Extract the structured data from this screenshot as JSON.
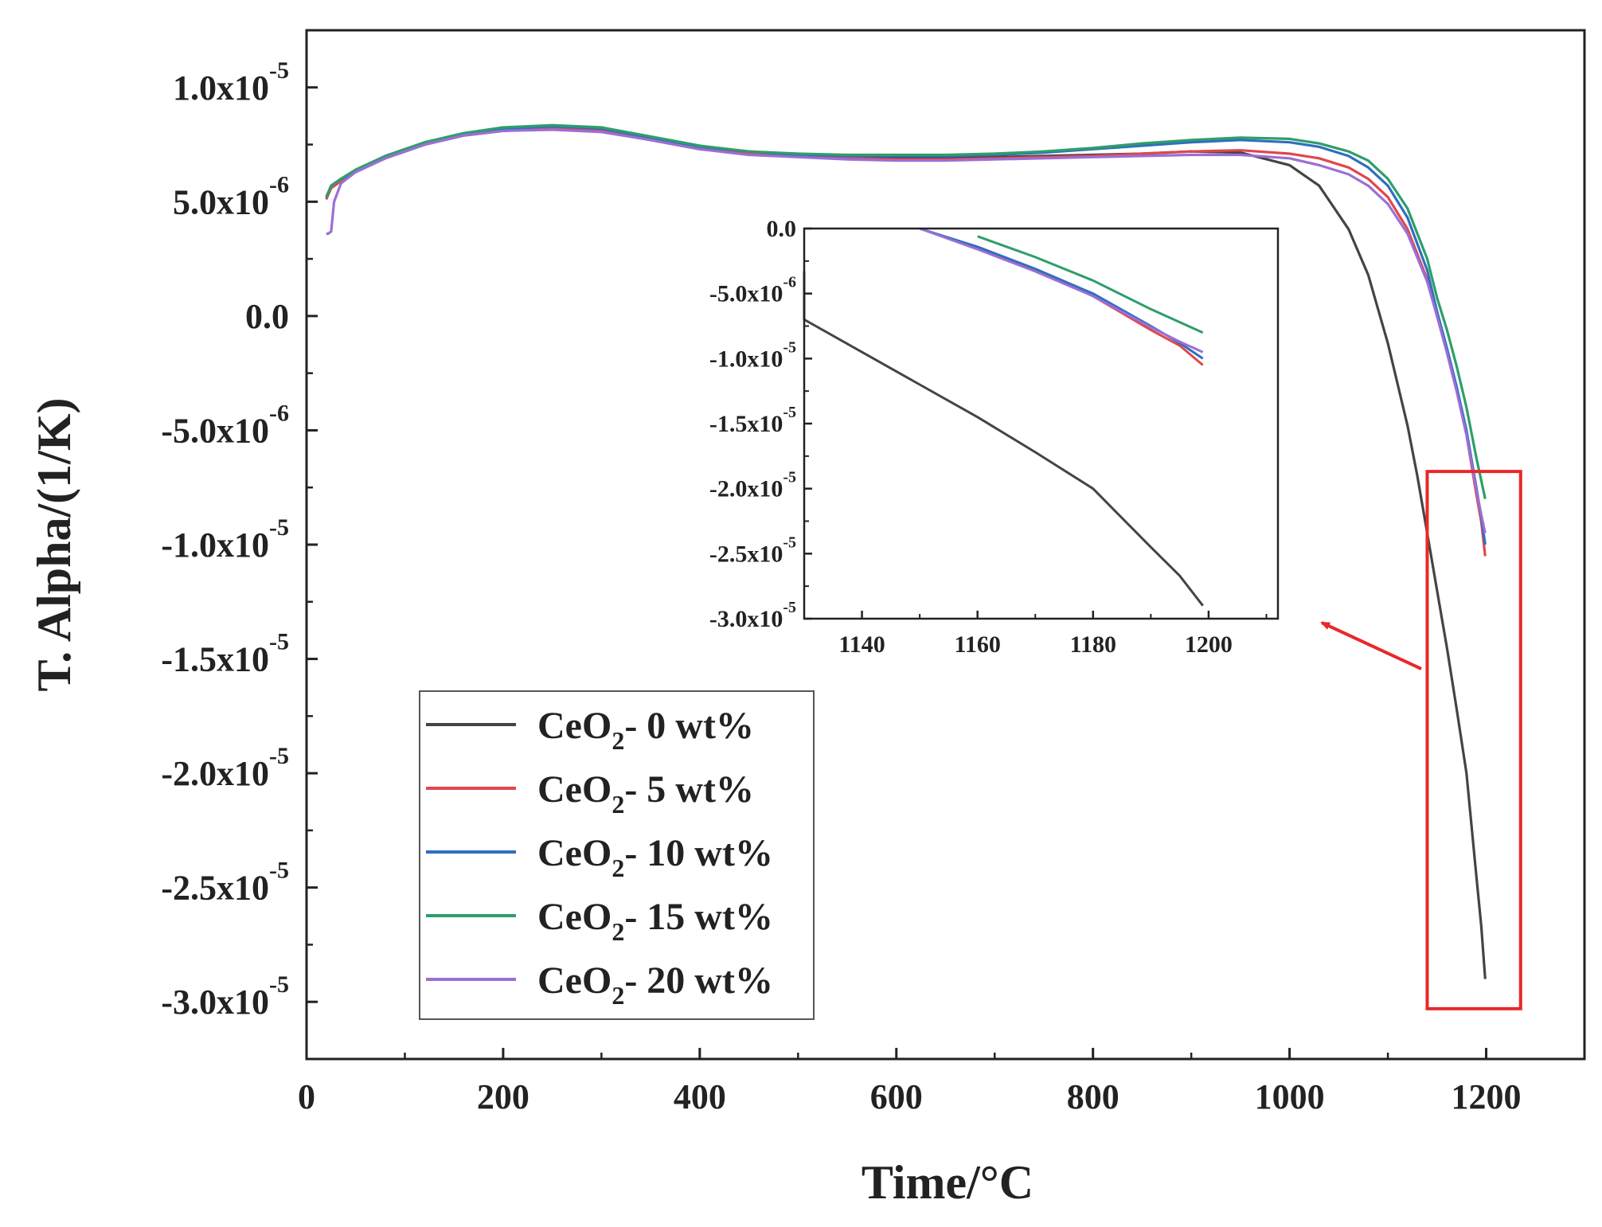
{
  "chart_data": {
    "type": "line",
    "xlabel": "Time/°C",
    "ylabel": "T. Alpha/(1/K)",
    "xlim": [
      0,
      1300
    ],
    "ylim": [
      -3.25e-05,
      1.25e-05
    ],
    "x_ticks": [
      0,
      200,
      400,
      600,
      800,
      1000,
      1200
    ],
    "x_tick_labels": [
      "0",
      "200",
      "400",
      "600",
      "800",
      "1000",
      "1200"
    ],
    "y_ticks": [
      {
        "value": 1e-05,
        "mantissa": "1.0x10",
        "exp": "-5"
      },
      {
        "value": 5e-06,
        "mantissa": "5.0x10",
        "exp": "-6"
      },
      {
        "value": 0,
        "mantissa": "0.0",
        "exp": ""
      },
      {
        "value": -5e-06,
        "mantissa": "-5.0x10",
        "exp": "-6"
      },
      {
        "value": -1e-05,
        "mantissa": "-1.0x10",
        "exp": "-5"
      },
      {
        "value": -1.5e-05,
        "mantissa": "-1.5x10",
        "exp": "-5"
      },
      {
        "value": -2e-05,
        "mantissa": "-2.0x10",
        "exp": "-5"
      },
      {
        "value": -2.5e-05,
        "mantissa": "-2.5x10",
        "exp": "-5"
      },
      {
        "value": -3e-05,
        "mantissa": "-3.0x10",
        "exp": "-5"
      }
    ],
    "legend_position": "lower-left",
    "series": [
      {
        "name": "CeO2- 0 wt%",
        "label_main": "CeO",
        "label_sub": "2",
        "label_tail": "- 0 wt%",
        "color": "#444444",
        "x": [
          20,
          25,
          35,
          50,
          80,
          120,
          160,
          200,
          250,
          300,
          350,
          400,
          450,
          500,
          550,
          600,
          650,
          700,
          750,
          800,
          850,
          900,
          950,
          1000,
          1030,
          1060,
          1080,
          1100,
          1120,
          1130,
          1140,
          1150,
          1160,
          1170,
          1180,
          1190,
          1195,
          1199
        ],
        "y": [
          5.2e-06,
          5.6e-06,
          5.9e-06,
          6.3e-06,
          6.9e-06,
          7.5e-06,
          7.9e-06,
          8.1e-06,
          8.2e-06,
          8.1e-06,
          7.7e-06,
          7.3e-06,
          7.1e-06,
          7e-06,
          6.95e-06,
          6.9e-06,
          6.9e-06,
          6.95e-06,
          7e-06,
          7.05e-06,
          7.1e-06,
          7.2e-06,
          7.15e-06,
          6.6e-06,
          5.7e-06,
          3.8e-06,
          1.8e-06,
          -1.2e-06,
          -4.8e-06,
          -7e-06,
          -9.5e-06,
          -1.2e-05,
          -1.45e-05,
          -1.72e-05,
          -2e-05,
          -2.45e-05,
          -2.67e-05,
          -2.9e-05
        ]
      },
      {
        "name": "CeO2- 5 wt%",
        "label_main": "CeO",
        "label_sub": "2",
        "label_tail": "- 5 wt%",
        "color": "#e0474c",
        "x": [
          20,
          25,
          35,
          50,
          80,
          120,
          160,
          200,
          250,
          300,
          350,
          400,
          450,
          500,
          550,
          600,
          650,
          700,
          750,
          800,
          850,
          900,
          950,
          1000,
          1030,
          1060,
          1080,
          1100,
          1120,
          1140,
          1150,
          1160,
          1170,
          1180,
          1190,
          1195,
          1199
        ],
        "y": [
          5.1e-06,
          5.6e-06,
          5.9e-06,
          6.3e-06,
          6.9e-06,
          7.5e-06,
          7.9e-06,
          8.1e-06,
          8.2e-06,
          8.1e-06,
          7.7e-06,
          7.3e-06,
          7.1e-06,
          7e-06,
          6.9e-06,
          6.85e-06,
          6.85e-06,
          6.9e-06,
          6.95e-06,
          7e-06,
          7.1e-06,
          7.2e-06,
          7.25e-06,
          7.1e-06,
          6.9e-06,
          6.5e-06,
          6e-06,
          5.2e-06,
          3.8e-06,
          1.6e-06,
          0.0,
          -1.5e-06,
          -3.2e-06,
          -5.2e-06,
          -7.8e-06,
          -9e-06,
          -1.05e-05
        ]
      },
      {
        "name": "CeO2- 10 wt%",
        "label_main": "CeO",
        "label_sub": "2",
        "label_tail": "- 10 wt%",
        "color": "#2f6fbf",
        "x": [
          20,
          25,
          35,
          50,
          80,
          120,
          160,
          200,
          250,
          300,
          350,
          400,
          450,
          500,
          550,
          600,
          650,
          700,
          750,
          800,
          850,
          900,
          950,
          1000,
          1030,
          1060,
          1080,
          1100,
          1120,
          1140,
          1150,
          1160,
          1170,
          1180,
          1190,
          1195,
          1199
        ],
        "y": [
          5.2e-06,
          5.7e-06,
          6e-06,
          6.3e-06,
          6.9e-06,
          7.5e-06,
          7.9e-06,
          8.2e-06,
          8.3e-06,
          8.2e-06,
          7.8e-06,
          7.4e-06,
          7.2e-06,
          7.05e-06,
          7e-06,
          7e-06,
          7e-06,
          7.05e-06,
          7.15e-06,
          7.3e-06,
          7.45e-06,
          7.6e-06,
          7.7e-06,
          7.6e-06,
          7.4e-06,
          7e-06,
          6.5e-06,
          5.7e-06,
          4.3e-06,
          2e-06,
          2e-07,
          -1.4e-06,
          -3.1e-06,
          -5e-06,
          -7.5e-06,
          -8.8e-06,
          -1e-05
        ]
      },
      {
        "name": "CeO2- 15 wt%",
        "label_main": "CeO",
        "label_sub": "2",
        "label_tail": "- 15 wt%",
        "color": "#2e9e6a",
        "x": [
          20,
          25,
          35,
          50,
          80,
          120,
          160,
          200,
          250,
          300,
          350,
          400,
          450,
          500,
          550,
          600,
          650,
          700,
          750,
          800,
          850,
          900,
          950,
          1000,
          1030,
          1060,
          1080,
          1100,
          1120,
          1140,
          1150,
          1160,
          1170,
          1180,
          1190,
          1195,
          1199
        ],
        "y": [
          5.2e-06,
          5.7e-06,
          6e-06,
          6.4e-06,
          7e-06,
          7.6e-06,
          8e-06,
          8.25e-06,
          8.35e-06,
          8.25e-06,
          7.85e-06,
          7.45e-06,
          7.2e-06,
          7.1e-06,
          7.05e-06,
          7.05e-06,
          7.05e-06,
          7.1e-06,
          7.2e-06,
          7.35e-06,
          7.55e-06,
          7.7e-06,
          7.8e-06,
          7.75e-06,
          7.55e-06,
          7.2e-06,
          6.8e-06,
          6e-06,
          4.7e-06,
          2.5e-06,
          8e-07,
          -6e-07,
          -2.2e-06,
          -4e-06,
          -6.2e-06,
          -7.2e-06,
          -8e-06
        ]
      },
      {
        "name": "CeO2- 20 wt%",
        "label_main": "CeO",
        "label_sub": "2",
        "label_tail": "- 20 wt%",
        "color": "#9b6fd6",
        "x": [
          20,
          22,
          25,
          28,
          35,
          50,
          80,
          120,
          160,
          200,
          250,
          300,
          350,
          400,
          450,
          500,
          550,
          600,
          650,
          700,
          750,
          800,
          850,
          900,
          950,
          1000,
          1030,
          1060,
          1080,
          1100,
          1120,
          1140,
          1150,
          1160,
          1170,
          1180,
          1190,
          1195,
          1199
        ],
        "y": [
          3.6e-06,
          3.6e-06,
          3.7e-06,
          5e-06,
          5.8e-06,
          6.3e-06,
          6.9e-06,
          7.5e-06,
          7.9e-06,
          8.1e-06,
          8.15e-06,
          8.05e-06,
          7.7e-06,
          7.3e-06,
          7.05e-06,
          6.95e-06,
          6.85e-06,
          6.8e-06,
          6.8e-06,
          6.85e-06,
          6.9e-06,
          6.95e-06,
          7e-06,
          7.05e-06,
          7.05e-06,
          6.9e-06,
          6.6e-06,
          6.2e-06,
          5.7e-06,
          4.9e-06,
          3.6e-06,
          1.5e-06,
          0.0,
          -1.6e-06,
          -3.3e-06,
          -5.2e-06,
          -7.6e-06,
          -8.7e-06,
          -9.5e-06
        ]
      }
    ],
    "inset": {
      "xlim": [
        1130,
        1212
      ],
      "ylim": [
        -3e-05,
        0
      ],
      "x_ticks": [
        1140,
        1160,
        1180,
        1200
      ],
      "x_tick_labels": [
        "1140",
        "1160",
        "1180",
        "1200"
      ],
      "y_ticks": [
        {
          "value": 0,
          "mantissa": "0.0",
          "exp": ""
        },
        {
          "value": -5e-06,
          "mantissa": "-5.0x10",
          "exp": "-6"
        },
        {
          "value": -1e-05,
          "mantissa": "-1.0x10",
          "exp": "-5"
        },
        {
          "value": -1.5e-05,
          "mantissa": "-1.5x10",
          "exp": "-5"
        },
        {
          "value": -2e-05,
          "mantissa": "-2.0x10",
          "exp": "-5"
        },
        {
          "value": -2.5e-05,
          "mantissa": "-2.5x10",
          "exp": "-5"
        },
        {
          "value": -3e-05,
          "mantissa": "-3.0x10",
          "exp": "-5"
        }
      ]
    },
    "highlight_box": {
      "x_range": [
        1140,
        1235
      ],
      "y_range": [
        -3.03e-05,
        -6.8e-06
      ],
      "color": "#e8282a"
    },
    "annotation": "red arrow from highlighted region to inset"
  }
}
